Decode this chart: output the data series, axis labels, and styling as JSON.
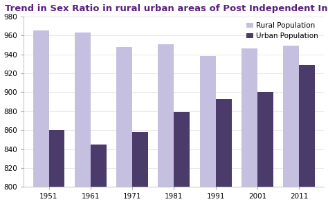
{
  "title": "Trend in Sex Ratio in rural urban areas of Post Independent India",
  "years": [
    "1951",
    "1961",
    "1971",
    "1981",
    "1991",
    "2001",
    "2011"
  ],
  "rural": [
    965,
    963,
    948,
    951,
    938,
    946,
    949
  ],
  "urban": [
    860,
    845,
    858,
    879,
    893,
    900,
    929
  ],
  "rural_color": "#c5bfe0",
  "urban_color": "#4a3b6b",
  "ylim": [
    800,
    980
  ],
  "yticks": [
    800,
    820,
    840,
    860,
    880,
    900,
    920,
    940,
    960,
    980
  ],
  "legend_rural": "Rural Population",
  "legend_urban": "Urban Population",
  "background_color": "#ffffff",
  "plot_bg_color": "#ffffff",
  "title_color": "#5b2080",
  "title_fontsize": 9.5,
  "tick_fontsize": 7.5,
  "bar_width": 0.38
}
